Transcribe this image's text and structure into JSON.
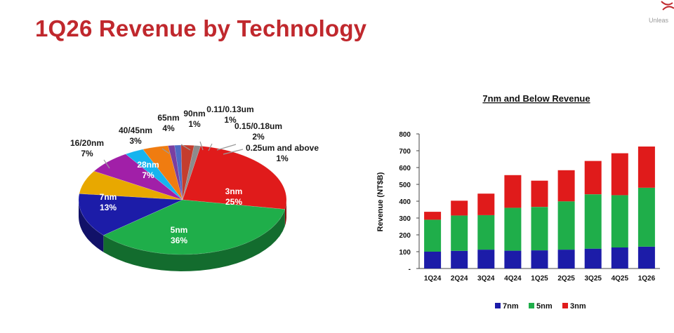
{
  "page": {
    "title": "1Q26 Revenue by Technology",
    "corner_text": "Unleas"
  },
  "chart_data": [
    {
      "type": "pie",
      "title": "",
      "unit": "%",
      "slices": [
        {
          "label": "3nm",
          "value": 25,
          "display": "25%",
          "color": "#e01b1b"
        },
        {
          "label": "5nm",
          "value": 36,
          "display": "36%",
          "color": "#1fae4a"
        },
        {
          "label": "7nm",
          "value": 13,
          "display": "13%",
          "color": "#1c1ca8"
        },
        {
          "label": "16/20nm",
          "value": 7,
          "display": "7%",
          "color": "#e8a800"
        },
        {
          "label": "28nm",
          "value": 7,
          "display": "7%",
          "color": "#a11fa8"
        },
        {
          "label": "40/45nm",
          "value": 3,
          "display": "3%",
          "color": "#16b4ef"
        },
        {
          "label": "65nm",
          "value": 4,
          "display": "4%",
          "color": "#f07c10"
        },
        {
          "label": "90nm",
          "value": 1,
          "display": "1%",
          "color": "#7a3fa0"
        },
        {
          "label": "0.11/0.13um",
          "value": 1,
          "display": "1%",
          "color": "#4d6bc4"
        },
        {
          "label": "0.15/0.18um",
          "value": 2,
          "display": "2%",
          "color": "#c43d2e"
        },
        {
          "label": "0.25um and above",
          "value": 1,
          "display": "1%",
          "color": "#8c8c8c"
        }
      ]
    },
    {
      "type": "bar",
      "stacked": true,
      "title": "7nm and Below Revenue",
      "xlabel": "",
      "ylabel": "Revenue (NT$B)",
      "ylim": [
        0,
        800
      ],
      "yticks": [
        0,
        100,
        200,
        300,
        400,
        500,
        600,
        700,
        800
      ],
      "ytick_labels": [
        "-",
        "100",
        "200",
        "300",
        "400",
        "500",
        "600",
        "700",
        "800"
      ],
      "grid": false,
      "legend": "bottom",
      "categories": [
        "1Q24",
        "2Q24",
        "3Q24",
        "4Q24",
        "1Q25",
        "2Q25",
        "3Q25",
        "4Q25",
        "1Q26"
      ],
      "series": [
        {
          "name": "7nm",
          "color": "#1c1ca8",
          "values": [
            100,
            105,
            112,
            106,
            108,
            112,
            118,
            125,
            130
          ]
        },
        {
          "name": "5nm",
          "color": "#1fae4a",
          "values": [
            190,
            210,
            205,
            255,
            258,
            287,
            323,
            311,
            350
          ]
        },
        {
          "name": "3nm",
          "color": "#e01b1b",
          "values": [
            47,
            88,
            128,
            194,
            156,
            185,
            198,
            249,
            245
          ]
        }
      ]
    }
  ]
}
